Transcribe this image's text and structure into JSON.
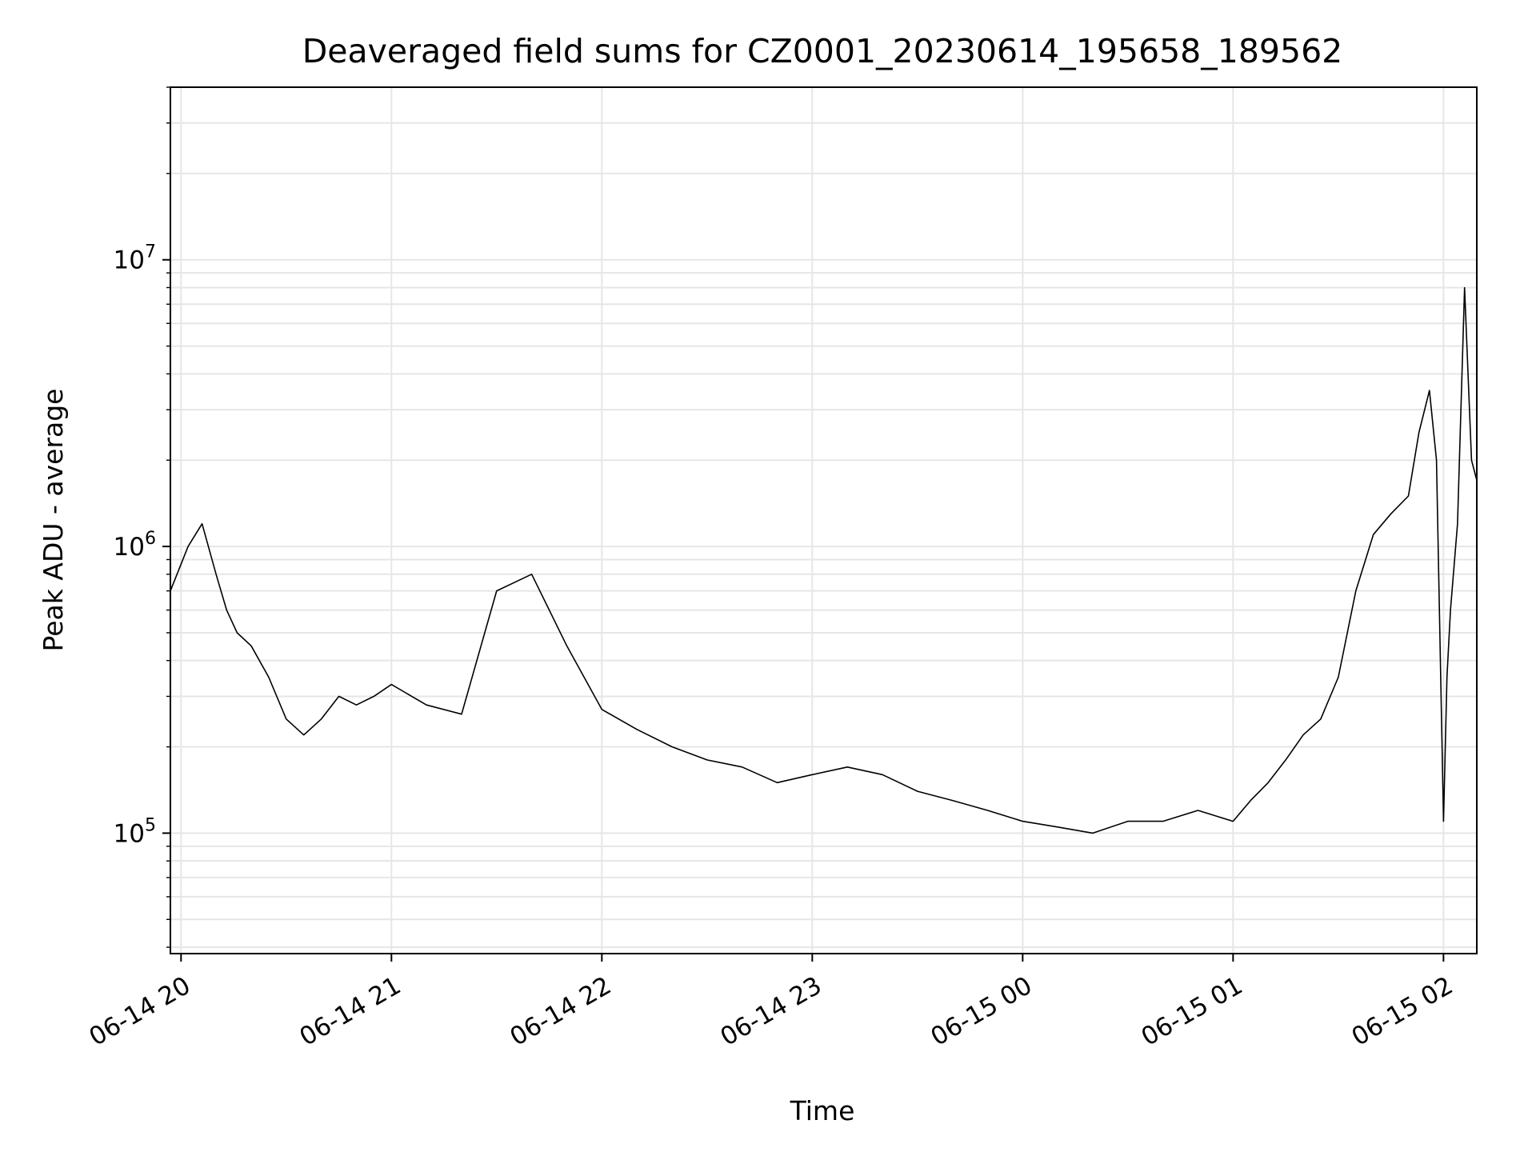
{
  "chart_data": {
    "type": "line",
    "title": "Deaveraged field sums for CZ0001_20230614_195658_189562",
    "xlabel": "Time",
    "ylabel": "Peak ADU - average",
    "y_scale": "log",
    "ylim": [
      38000,
      40000000
    ],
    "xlim": [
      "2023-06-14T19:56:58",
      "2023-06-15T02:09:30"
    ],
    "x_ticks": [
      {
        "value": "2023-06-14T20:00",
        "label": "06-14 20"
      },
      {
        "value": "2023-06-14T21:00",
        "label": "06-14 21"
      },
      {
        "value": "2023-06-14T22:00",
        "label": "06-14 22"
      },
      {
        "value": "2023-06-14T23:00",
        "label": "06-14 23"
      },
      {
        "value": "2023-06-15T00:00",
        "label": "06-15 00"
      },
      {
        "value": "2023-06-15T01:00",
        "label": "06-15 01"
      },
      {
        "value": "2023-06-15T02:00",
        "label": "06-15 02"
      }
    ],
    "y_ticks": [
      {
        "value": 100000,
        "base": "10",
        "exp": "5"
      },
      {
        "value": 1000000,
        "base": "10",
        "exp": "6"
      },
      {
        "value": 10000000,
        "base": "10",
        "exp": "7"
      }
    ],
    "grid": true,
    "line_color": "#000000",
    "grid_color": "#e6e6e6",
    "series": [
      {
        "x": [
          "2023-06-14T19:56:58",
          "2023-06-14T20:02",
          "2023-06-14T20:06",
          "2023-06-14T20:10",
          "2023-06-14T20:13",
          "2023-06-14T20:16",
          "2023-06-14T20:20",
          "2023-06-14T20:25",
          "2023-06-14T20:30",
          "2023-06-14T20:35",
          "2023-06-14T20:40",
          "2023-06-14T20:45",
          "2023-06-14T20:50",
          "2023-06-14T20:55",
          "2023-06-14T21:00",
          "2023-06-14T21:10",
          "2023-06-14T21:20",
          "2023-06-14T21:30",
          "2023-06-14T21:40",
          "2023-06-14T21:50",
          "2023-06-14T22:00",
          "2023-06-14T22:10",
          "2023-06-14T22:20",
          "2023-06-14T22:30",
          "2023-06-14T22:40",
          "2023-06-14T22:50",
          "2023-06-14T23:00",
          "2023-06-14T23:10",
          "2023-06-14T23:20",
          "2023-06-14T23:30",
          "2023-06-14T23:40",
          "2023-06-14T23:50",
          "2023-06-15T00:00",
          "2023-06-15T00:10",
          "2023-06-15T00:20",
          "2023-06-15T00:30",
          "2023-06-15T00:40",
          "2023-06-15T00:50",
          "2023-06-15T01:00",
          "2023-06-15T01:05",
          "2023-06-15T01:10",
          "2023-06-15T01:15",
          "2023-06-15T01:20",
          "2023-06-15T01:25",
          "2023-06-15T01:30",
          "2023-06-15T01:35",
          "2023-06-15T01:40",
          "2023-06-15T01:45",
          "2023-06-15T01:50",
          "2023-06-15T01:53",
          "2023-06-15T01:56",
          "2023-06-15T01:58",
          "2023-06-15T02:00",
          "2023-06-15T02:01",
          "2023-06-15T02:02",
          "2023-06-15T02:04",
          "2023-06-15T02:06",
          "2023-06-15T02:08",
          "2023-06-15T02:09:30"
        ],
        "y": [
          700000,
          1000000,
          1200000,
          800000,
          600000,
          500000,
          450000,
          350000,
          250000,
          220000,
          250000,
          300000,
          280000,
          300000,
          330000,
          280000,
          260000,
          700000,
          800000,
          450000,
          270000,
          230000,
          200000,
          180000,
          170000,
          150000,
          160000,
          170000,
          160000,
          140000,
          130000,
          120000,
          110000,
          105000,
          100000,
          110000,
          110000,
          120000,
          110000,
          130000,
          150000,
          180000,
          220000,
          250000,
          350000,
          700000,
          1100000,
          1300000,
          1500000,
          2500000,
          3500000,
          2000000,
          110000,
          350000,
          600000,
          1200000,
          8000000,
          2000000,
          1700000
        ]
      }
    ]
  }
}
